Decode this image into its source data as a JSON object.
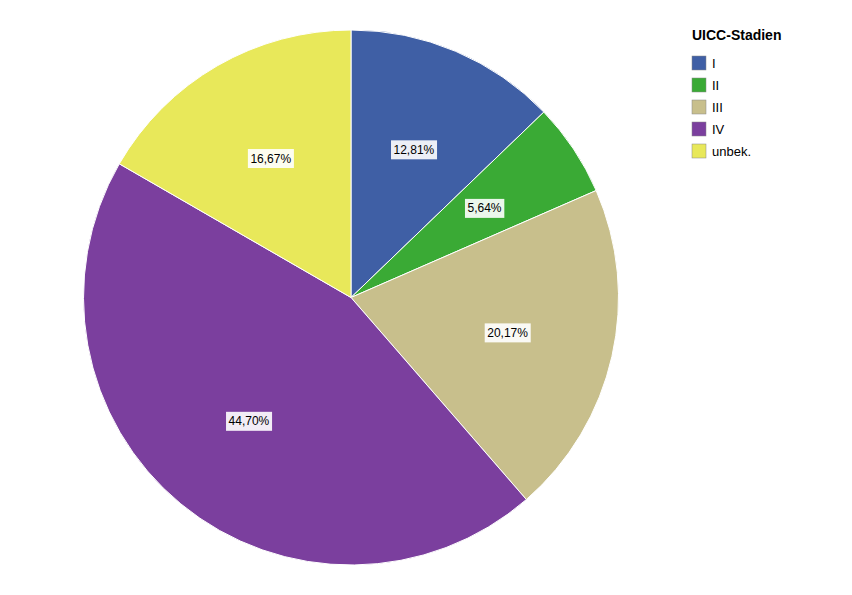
{
  "chart_data": {
    "type": "pie",
    "categories": [
      "I",
      "II",
      "III",
      "IV",
      "unbek."
    ],
    "values": [
      12.81,
      5.64,
      20.17,
      44.7,
      16.67
    ],
    "value_labels": [
      "12,81%",
      "5,64%",
      "20,17%",
      "44,70%",
      "16,67%"
    ],
    "colors": [
      "#3f5fa5",
      "#3aaa35",
      "#c8bf8c",
      "#7b3f9e",
      "#e8e85a"
    ],
    "legend_title": "UICC-Stadien",
    "legend": "right",
    "data_labels": true
  }
}
